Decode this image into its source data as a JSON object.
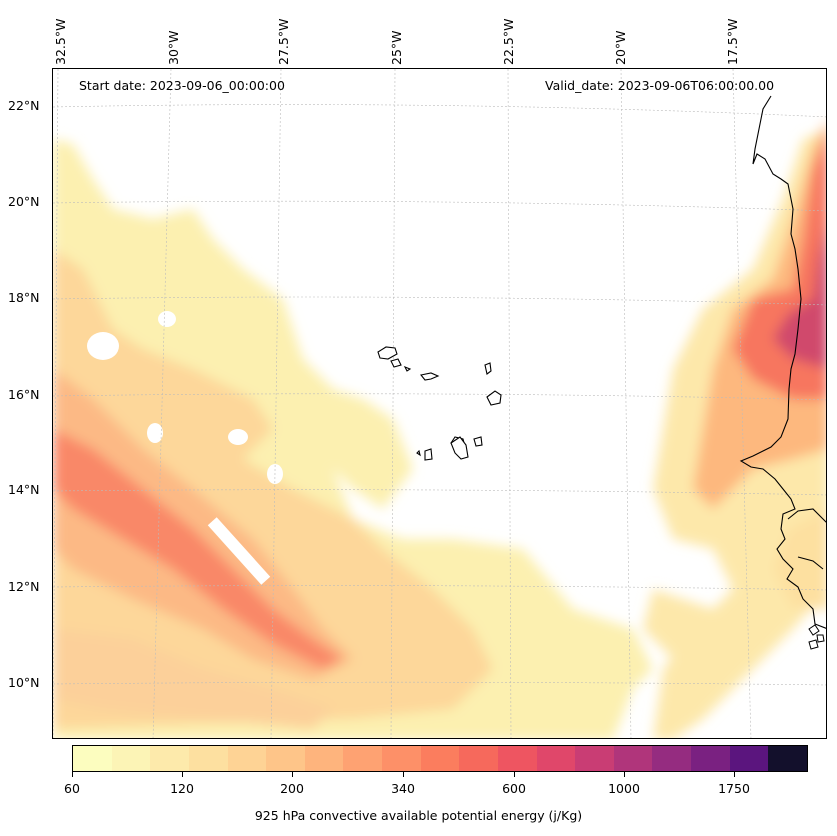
{
  "header": {
    "start_date": "Start date: 2023-09-06_00:00:00",
    "valid_date": "Valid_date: 2023-09-06T06:00:00.00"
  },
  "axes": {
    "lon_labels": [
      "32.5°W",
      "30°W",
      "27.5°W",
      "25°W",
      "22.5°W",
      "20°W",
      "17.5°W"
    ],
    "lat_labels": [
      "22°N",
      "20°N",
      "18°N",
      "16°N",
      "14°N",
      "12°N",
      "10°N"
    ],
    "grid": true
  },
  "colorbar": {
    "title": "925 hPa convective available potential energy (j/Kg)",
    "tick_labels": [
      "60",
      "120",
      "200",
      "340",
      "600",
      "1000",
      "1750"
    ],
    "colors": [
      "#fcfdbf",
      "#fcf4b6",
      "#fdeaab",
      "#fde0a0",
      "#fed395",
      "#fec589",
      "#feb47d",
      "#fea272",
      "#fd9068",
      "#fb7d5e",
      "#f6695c",
      "#ee5561",
      "#e0476a",
      "#c93d74",
      "#b0357b",
      "#952c80",
      "#7a2181",
      "#5b157e",
      "#13102c"
    ]
  }
}
